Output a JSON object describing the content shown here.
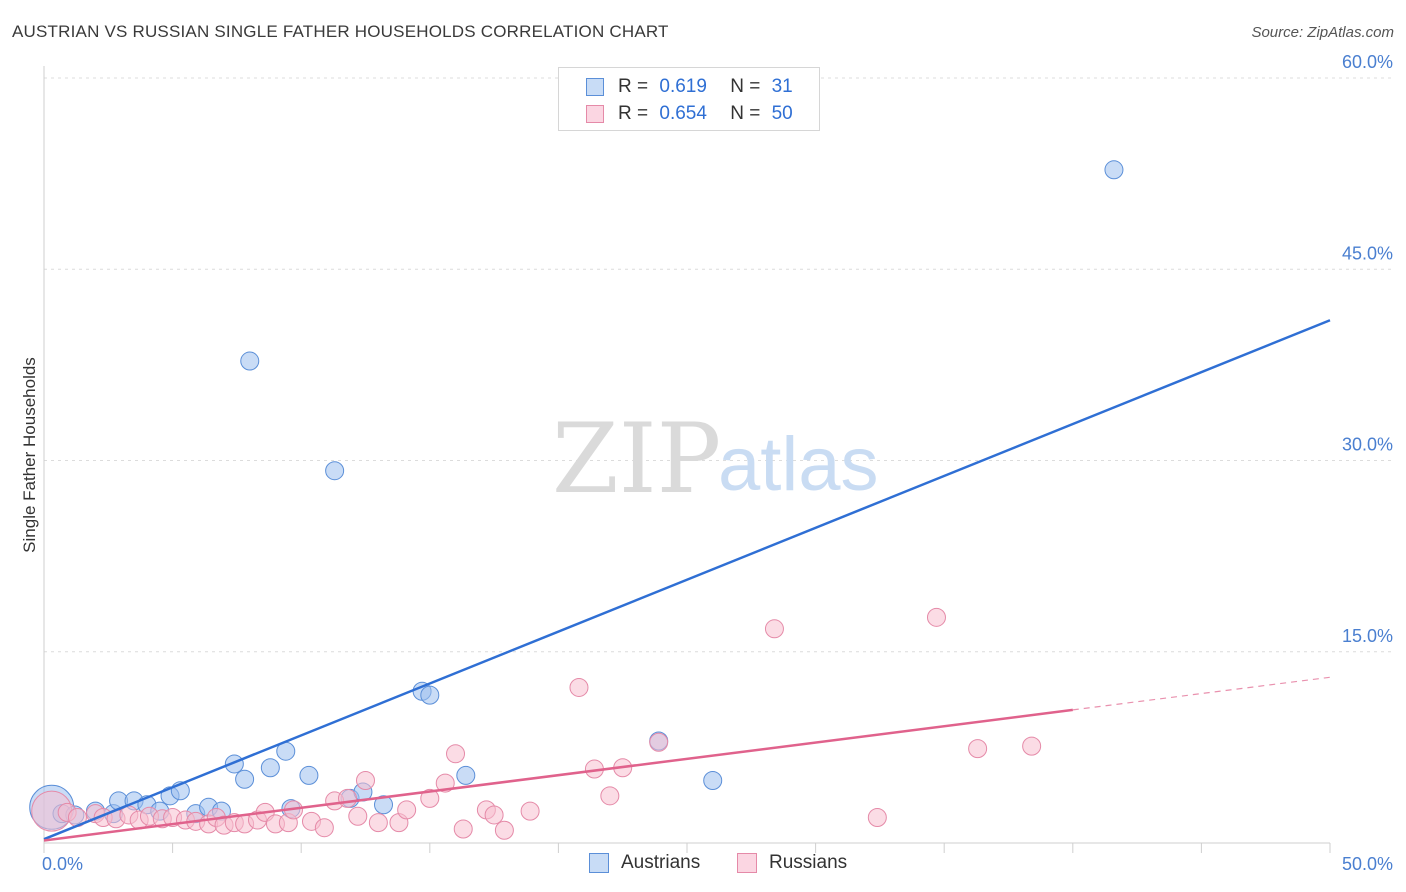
{
  "header": {
    "title": "AUSTRIAN VS RUSSIAN SINGLE FATHER HOUSEHOLDS CORRELATION CHART",
    "source": "Source: ZipAtlas.com"
  },
  "watermark": {
    "zip": "ZIP",
    "atlas": "atlas"
  },
  "legend": {
    "r_label": "R =",
    "n_label": "N =",
    "austrians": {
      "r": "0.619",
      "n": "31",
      "color": "#9dbfee",
      "border": "#5b8fd8"
    },
    "russians": {
      "r": "0.654",
      "n": "50",
      "color": "#f7bfd0",
      "border": "#e58aa8"
    }
  },
  "bottom_legend": {
    "austrians": "Austrians",
    "russians": "Russians"
  },
  "chart_data": {
    "type": "scatter",
    "title": "AUSTRIAN VS RUSSIAN SINGLE FATHER HOUSEHOLDS CORRELATION CHART",
    "xlabel": "",
    "ylabel": "Single Father Households",
    "xlim": [
      0,
      50
    ],
    "ylim": [
      0,
      60
    ],
    "x_tick_labels": [
      "0.0%",
      "50.0%"
    ],
    "y_ticks": [
      15,
      30,
      45,
      60
    ],
    "y_tick_labels": [
      "15.0%",
      "30.0%",
      "45.0%",
      "60.0%"
    ],
    "grid": true,
    "series": [
      {
        "name": "Austrians",
        "color": "#9dbfee",
        "edge": "#5b8fd8",
        "line_color": "#2f6fd4",
        "trend": {
          "x0": 0,
          "y0": 0.3,
          "x1": 50,
          "y1": 41.0,
          "solid_until": 50
        },
        "points": [
          [
            0.3,
            2.8,
            22
          ],
          [
            0.7,
            2.3,
            9
          ],
          [
            1.2,
            2.2,
            9
          ],
          [
            2.0,
            2.5,
            9
          ],
          [
            2.7,
            2.3,
            9
          ],
          [
            2.9,
            3.3,
            9
          ],
          [
            3.5,
            3.3,
            9
          ],
          [
            4.0,
            3.0,
            9
          ],
          [
            4.5,
            2.5,
            9
          ],
          [
            4.9,
            3.7,
            9
          ],
          [
            5.3,
            4.1,
            9
          ],
          [
            5.9,
            2.3,
            9
          ],
          [
            6.4,
            2.8,
            9
          ],
          [
            6.9,
            2.5,
            9
          ],
          [
            7.4,
            6.2,
            9
          ],
          [
            7.8,
            5.0,
            9
          ],
          [
            8.0,
            37.8,
            9
          ],
          [
            8.8,
            5.9,
            9
          ],
          [
            9.4,
            7.2,
            9
          ],
          [
            9.6,
            2.7,
            9
          ],
          [
            10.3,
            5.3,
            9
          ],
          [
            11.3,
            29.2,
            9
          ],
          [
            11.9,
            3.5,
            9
          ],
          [
            12.4,
            4.0,
            9
          ],
          [
            13.2,
            3.0,
            9
          ],
          [
            14.7,
            11.9,
            9
          ],
          [
            15.0,
            11.6,
            9
          ],
          [
            16.4,
            5.3,
            9
          ],
          [
            23.9,
            8.0,
            9
          ],
          [
            26.0,
            4.9,
            9
          ],
          [
            41.6,
            52.8,
            9
          ]
        ]
      },
      {
        "name": "Russians",
        "color": "#f7bfd0",
        "edge": "#e58aa8",
        "line_color": "#e0628c",
        "trend": {
          "x0": 0,
          "y0": 0.2,
          "x1": 50,
          "y1": 13.0,
          "solid_until": 40
        },
        "points": [
          [
            0.3,
            2.5,
            20
          ],
          [
            0.9,
            2.4,
            9
          ],
          [
            1.3,
            2.0,
            9
          ],
          [
            2.0,
            2.3,
            9
          ],
          [
            2.3,
            2.0,
            9
          ],
          [
            2.8,
            1.9,
            9
          ],
          [
            3.3,
            2.2,
            9
          ],
          [
            3.7,
            1.8,
            9
          ],
          [
            4.1,
            2.1,
            9
          ],
          [
            4.6,
            1.9,
            9
          ],
          [
            5.0,
            2.0,
            9
          ],
          [
            5.5,
            1.8,
            9
          ],
          [
            5.9,
            1.7,
            9
          ],
          [
            6.4,
            1.5,
            9
          ],
          [
            6.7,
            2.0,
            9
          ],
          [
            7.0,
            1.4,
            9
          ],
          [
            7.4,
            1.6,
            9
          ],
          [
            7.8,
            1.5,
            9
          ],
          [
            8.3,
            1.8,
            9
          ],
          [
            8.6,
            2.4,
            9
          ],
          [
            9.0,
            1.5,
            9
          ],
          [
            9.5,
            1.6,
            9
          ],
          [
            9.7,
            2.6,
            9
          ],
          [
            10.4,
            1.7,
            9
          ],
          [
            10.9,
            1.2,
            9
          ],
          [
            11.3,
            3.3,
            9
          ],
          [
            11.8,
            3.5,
            9
          ],
          [
            12.2,
            2.1,
            9
          ],
          [
            12.5,
            4.9,
            9
          ],
          [
            13.0,
            1.6,
            9
          ],
          [
            13.8,
            1.6,
            9
          ],
          [
            14.1,
            2.6,
            9
          ],
          [
            15.0,
            3.5,
            9
          ],
          [
            15.6,
            4.7,
            9
          ],
          [
            16.0,
            7.0,
            9
          ],
          [
            16.3,
            1.1,
            9
          ],
          [
            17.2,
            2.6,
            9
          ],
          [
            17.5,
            2.2,
            9
          ],
          [
            17.9,
            1.0,
            9
          ],
          [
            18.9,
            2.5,
            9
          ],
          [
            20.8,
            12.2,
            9
          ],
          [
            21.4,
            5.8,
            9
          ],
          [
            22.0,
            3.7,
            9
          ],
          [
            22.5,
            5.9,
            9
          ],
          [
            23.9,
            7.9,
            9
          ],
          [
            28.4,
            16.8,
            9
          ],
          [
            32.4,
            2.0,
            9
          ],
          [
            34.7,
            17.7,
            9
          ],
          [
            36.3,
            7.4,
            9
          ],
          [
            38.4,
            7.6,
            9
          ]
        ]
      }
    ]
  }
}
